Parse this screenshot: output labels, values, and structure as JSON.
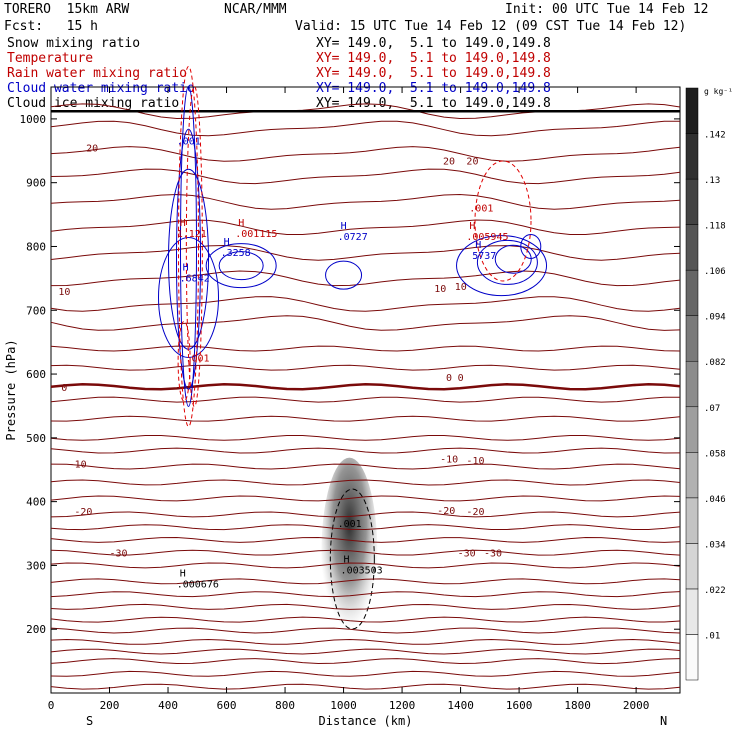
{
  "header": {
    "model": "TORERO  15km ARW",
    "org": "NCAR/MMM",
    "init": "Init: 00 UTC Tue 14 Feb 12",
    "fcst": "Fcst:   15 h",
    "valid": "Valid: 15 UTC Tue 14 Feb 12 (09 CST Tue 14 Feb 12)"
  },
  "fields": [
    {
      "label": "Snow mixing ratio",
      "xy": "XY= 149.0,  5.1 to 149.0,149.8",
      "color": "#000000"
    },
    {
      "label": "Temperature",
      "xy": "XY= 149.0,  5.1 to 149.0,149.8",
      "color": "#c00000"
    },
    {
      "label": "Rain water mixing ratio",
      "xy": "XY= 149.0,  5.1 to 149.0,149.8",
      "color": "#c00000"
    },
    {
      "label": "Cloud water mixing ratio",
      "xy": "XY= 149.0,  5.1 to 149.0,149.8",
      "color": "#0000c8"
    },
    {
      "label": "Cloud ice mixing ratio",
      "xy": "XY= 149.0,  5.1 to 149.0,149.8",
      "color": "#000000"
    }
  ],
  "chart_data": {
    "type": "heatmap",
    "ylabel": "Pressure (hPa)",
    "xlabel": "Distance (km)",
    "x_ticks": [
      0,
      200,
      400,
      600,
      800,
      1000,
      1200,
      1400,
      1600,
      1800,
      2000
    ],
    "y_ticks": [
      200,
      300,
      400,
      500,
      600,
      700,
      800,
      900,
      1000
    ],
    "xlim": [
      0,
      2150
    ],
    "ylim": [
      1050,
      100
    ],
    "x_end_labels": {
      "left": "S",
      "right": "N"
    },
    "colorbar": {
      "unit": "g kg⁻¹",
      "ticks": [
        ".01",
        ".022",
        ".034",
        ".046",
        ".058",
        ".07",
        ".082",
        ".094",
        ".106",
        ".118",
        ".13",
        ".142"
      ]
    },
    "temperature_contours": [
      {
        "value": -30,
        "label": "-30"
      },
      {
        "value": -20,
        "label": "-20"
      },
      {
        "value": -10,
        "label": "-10"
      },
      {
        "value": 0,
        "label": "0"
      },
      {
        "value": 10,
        "label": "10"
      },
      {
        "value": 20,
        "label": "20"
      }
    ],
    "max_labels": [
      {
        "marker": "H",
        "value": ".000676",
        "x": 440,
        "p": 265,
        "field": "snow"
      },
      {
        "marker": "H",
        "value": ".003503",
        "x": 1000,
        "p": 287,
        "field": "snow"
      },
      {
        "marker": "",
        "value": ".001",
        "x": 990,
        "p": 360,
        "field": "snow"
      },
      {
        "marker": "",
        "value": ".001",
        "x": 470,
        "p": 620,
        "field": "rain"
      },
      {
        "marker": "H",
        "value": ".6842",
        "x": 450,
        "p": 745,
        "field": "cloud"
      },
      {
        "marker": "H",
        "value": ".3258",
        "x": 590,
        "p": 785,
        "field": "cloud"
      },
      {
        "marker": "H",
        "value": ".001115",
        "x": 640,
        "p": 815,
        "field": "rain"
      },
      {
        "marker": "H",
        "value": ".0727",
        "x": 990,
        "p": 810,
        "field": "cloud"
      },
      {
        "marker": "H",
        "value": "5737",
        "x": 1450,
        "p": 780,
        "field": "cloud"
      },
      {
        "marker": "H",
        "value": ".005945",
        "x": 1430,
        "p": 810,
        "field": "rain"
      },
      {
        "marker": "",
        "value": ".001",
        "x": 1440,
        "p": 855,
        "field": "rain"
      },
      {
        "marker": "H",
        "value": "1.121",
        "x": 440,
        "p": 815,
        "field": "rain"
      },
      {
        "marker": "",
        "value": ".001",
        "x": 440,
        "p": 960,
        "field": "cloud"
      }
    ]
  }
}
